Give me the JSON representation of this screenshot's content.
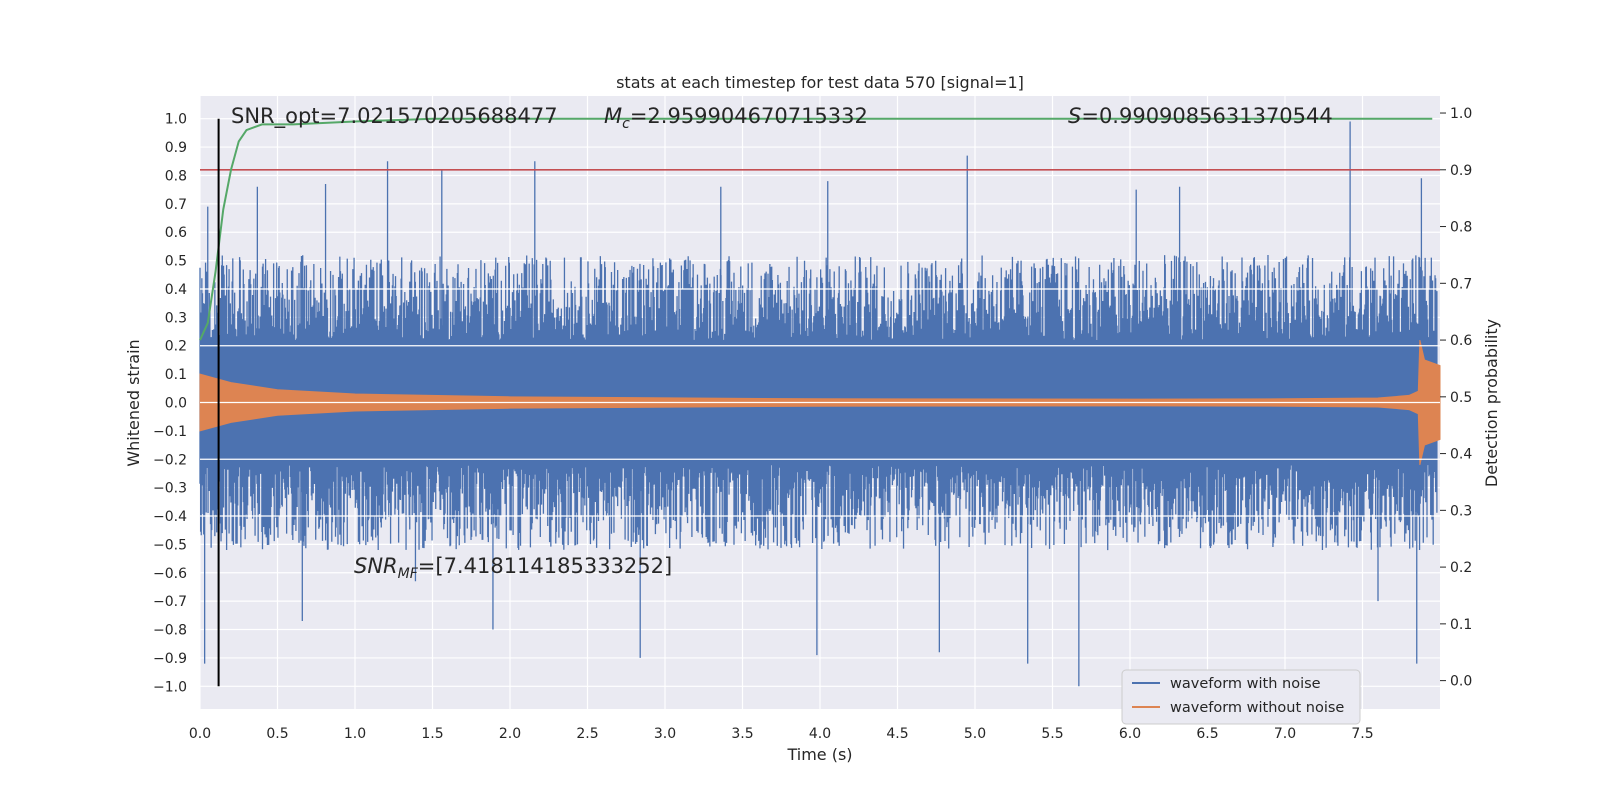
{
  "chart_data": {
    "type": "line",
    "title": "stats at each timestep for test data 570 [signal=1]",
    "xlabel": "Time (s)",
    "ylabel": "Whitened strain",
    "ylabel_right": "Detection probability",
    "xlim": [
      0.0,
      8.0
    ],
    "ylim": [
      -1.08,
      1.08
    ],
    "ylim_right": [
      -0.05,
      1.03
    ],
    "x_ticks": [
      0.0,
      0.5,
      1.0,
      1.5,
      2.0,
      2.5,
      3.0,
      3.5,
      4.0,
      4.5,
      5.0,
      5.5,
      6.0,
      6.5,
      7.0,
      7.5
    ],
    "x_tick_labels": [
      "0.0",
      "0.5",
      "1.0",
      "1.5",
      "2.0",
      "2.5",
      "3.0",
      "3.5",
      "4.0",
      "4.5",
      "5.0",
      "5.5",
      "6.0",
      "6.5",
      "7.0",
      "7.5"
    ],
    "y_ticks": [
      1.0,
      0.9,
      0.8,
      0.7,
      0.6,
      0.5,
      0.4,
      0.3,
      0.2,
      0.1,
      0.0,
      -0.1,
      -0.2,
      -0.3,
      -0.4,
      -0.5,
      -0.6,
      -0.7,
      -0.8,
      -0.9,
      -1.0
    ],
    "y_tick_labels": [
      "1.0",
      "0.9",
      "0.8",
      "0.7",
      "0.6",
      "0.5",
      "0.4",
      "0.3",
      "0.2",
      "0.1",
      "0.0",
      "−0.1",
      "−0.2",
      "−0.3",
      "−0.4",
      "−0.5",
      "−0.6",
      "−0.7",
      "−0.8",
      "−0.9",
      "−1.0"
    ],
    "y_right_ticks": [
      1.0,
      0.9,
      0.8,
      0.7,
      0.6,
      0.5,
      0.4,
      0.3,
      0.2,
      0.1,
      0.0
    ],
    "y_right_tick_labels": [
      "1.0",
      "0.9",
      "0.8",
      "0.7",
      "0.6",
      "0.5",
      "0.4",
      "0.3",
      "0.2",
      "0.1",
      "0.0"
    ],
    "grid": true,
    "legend_position": "bottom-right",
    "annotations": {
      "snr_opt": "SNR_opt=7.021570205688477",
      "mc_symbol": "M",
      "mc_subscript": "c",
      "mc_value": "=2.959904670715332",
      "s_symbol": "S",
      "s_value": "=0.9909085631370544",
      "snr_mf_symbol": "SNR",
      "snr_mf_subscript": "MF",
      "snr_mf_value": "=[7.418114185333252]"
    },
    "threshold": {
      "value": 0.9,
      "axis": "right",
      "color": "#c44e52"
    },
    "marker_line": {
      "x": 0.12,
      "y_range": [
        -1.0,
        1.0
      ],
      "color": "#000000"
    },
    "series": [
      {
        "name": "waveform with noise",
        "axis": "left",
        "color": "#4c72b0",
        "envelope_typical": 0.4,
        "peaks": [
          {
            "x": 0.03,
            "y": -0.92
          },
          {
            "x": 0.05,
            "y": 0.69
          },
          {
            "x": 0.12,
            "y": -0.8
          },
          {
            "x": 0.37,
            "y": 0.76
          },
          {
            "x": 0.66,
            "y": -0.77
          },
          {
            "x": 0.81,
            "y": 0.77
          },
          {
            "x": 1.21,
            "y": 0.85
          },
          {
            "x": 1.39,
            "y": -0.63
          },
          {
            "x": 1.56,
            "y": 0.82
          },
          {
            "x": 1.89,
            "y": -0.8
          },
          {
            "x": 2.16,
            "y": 0.85
          },
          {
            "x": 2.84,
            "y": -0.9
          },
          {
            "x": 3.36,
            "y": 0.76
          },
          {
            "x": 3.98,
            "y": -0.89
          },
          {
            "x": 4.05,
            "y": 0.78
          },
          {
            "x": 4.77,
            "y": -0.88
          },
          {
            "x": 4.95,
            "y": 0.87
          },
          {
            "x": 5.34,
            "y": -0.92
          },
          {
            "x": 5.67,
            "y": -1.0
          },
          {
            "x": 6.04,
            "y": 0.75
          },
          {
            "x": 6.32,
            "y": 0.76
          },
          {
            "x": 7.42,
            "y": 0.99
          },
          {
            "x": 7.6,
            "y": -0.7
          },
          {
            "x": 7.85,
            "y": -0.92
          },
          {
            "x": 7.88,
            "y": 0.79
          }
        ]
      },
      {
        "name": "waveform without noise",
        "axis": "left",
        "color": "#dd8452",
        "envelope": [
          [
            0.0,
            0.1
          ],
          [
            0.2,
            0.07
          ],
          [
            0.5,
            0.045
          ],
          [
            1.0,
            0.03
          ],
          [
            2.0,
            0.02
          ],
          [
            4.0,
            0.013
          ],
          [
            6.0,
            0.012
          ],
          [
            7.0,
            0.013
          ],
          [
            7.6,
            0.016
          ],
          [
            7.8,
            0.025
          ],
          [
            7.86,
            0.04
          ],
          [
            7.87,
            0.22
          ],
          [
            7.9,
            0.15
          ],
          [
            8.0,
            0.13
          ]
        ]
      },
      {
        "name": "",
        "axis": "right",
        "color": "#55a868",
        "x": [
          0.0,
          0.05,
          0.1,
          0.15,
          0.2,
          0.25,
          0.3,
          0.4,
          0.6,
          1.0,
          1.5,
          2.0,
          3.0,
          4.0,
          5.0,
          6.0,
          7.0,
          7.95
        ],
        "y": [
          0.6,
          0.63,
          0.72,
          0.83,
          0.9,
          0.95,
          0.97,
          0.98,
          0.98,
          0.985,
          0.99,
          0.99,
          0.99,
          0.99,
          0.99,
          0.99,
          0.99,
          0.99
        ]
      }
    ]
  }
}
